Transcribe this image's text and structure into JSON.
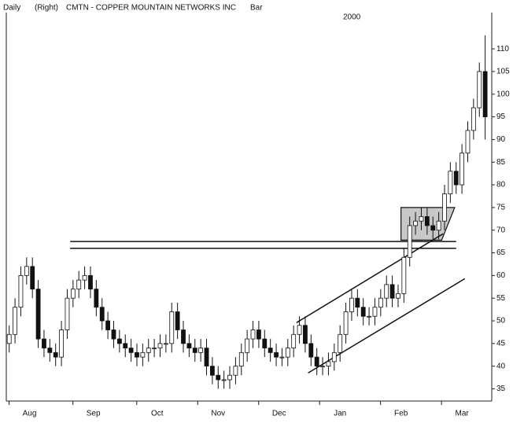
{
  "chart_data": {
    "type": "candlestick",
    "period": "Daily",
    "scale_side": "(Right)",
    "title": "CMTN - COPPER MOUNTAIN NETWORKS INC",
    "style": "Bar",
    "year": "2000",
    "x": [
      0,
      2,
      4,
      6,
      8,
      10,
      12,
      14,
      16,
      18,
      20,
      22,
      24,
      26,
      28,
      30,
      32,
      34,
      36,
      38,
      40,
      42,
      44,
      46,
      48,
      50,
      52,
      54,
      56,
      58,
      60,
      62,
      64,
      66,
      68,
      70,
      72,
      74,
      76,
      78,
      80,
      82,
      84,
      86,
      88,
      90,
      92,
      94,
      96,
      98,
      100,
      102,
      104,
      106,
      108,
      110,
      112,
      114,
      116,
      118,
      120,
      122,
      124,
      126,
      128,
      130,
      132,
      134,
      136,
      138,
      140,
      142,
      144,
      146,
      148,
      150,
      152,
      154,
      156,
      158,
      160,
      162,
      164
    ],
    "open": [
      45,
      47,
      53,
      60,
      62,
      57,
      46,
      44,
      43,
      42,
      48,
      55,
      57,
      59,
      60,
      57,
      53,
      50,
      48,
      46,
      45,
      44,
      43,
      42,
      43,
      44,
      44,
      45,
      45,
      52,
      48,
      45,
      44,
      43,
      44,
      40,
      38,
      37,
      37,
      38,
      40,
      43,
      46,
      48,
      46,
      44,
      43,
      42,
      42,
      44,
      47,
      49,
      45,
      42,
      40,
      40,
      41,
      43,
      47,
      52,
      55,
      53,
      51,
      51,
      53,
      55,
      58,
      55,
      56,
      64,
      71,
      72,
      73,
      71,
      70,
      72,
      78,
      83,
      80,
      87,
      92,
      97,
      105
    ],
    "high": [
      49,
      55,
      62,
      64,
      64,
      59,
      48,
      46,
      45,
      50,
      57,
      59,
      61,
      62,
      62,
      59,
      55,
      52,
      50,
      48,
      47,
      46,
      45,
      45,
      46,
      46,
      47,
      47,
      54,
      54,
      50,
      47,
      46,
      46,
      46,
      42,
      40,
      39,
      40,
      42,
      45,
      48,
      50,
      50,
      48,
      46,
      45,
      44,
      46,
      49,
      51,
      51,
      47,
      44,
      42,
      43,
      45,
      49,
      54,
      57,
      57,
      55,
      53,
      55,
      57,
      60,
      60,
      58,
      66,
      73,
      74,
      75,
      75,
      73,
      74,
      80,
      85,
      85,
      89,
      94,
      99,
      107,
      113
    ],
    "low": [
      43,
      45,
      51,
      58,
      55,
      44,
      42,
      41,
      40,
      40,
      46,
      53,
      55,
      57,
      55,
      51,
      48,
      46,
      44,
      43,
      42,
      41,
      40,
      40,
      41,
      42,
      42,
      43,
      43,
      46,
      43,
      42,
      41,
      41,
      38,
      36,
      35,
      35,
      35,
      36,
      38,
      41,
      44,
      44,
      42,
      41,
      40,
      40,
      40,
      42,
      45,
      43,
      40,
      38,
      38,
      38,
      39,
      41,
      45,
      50,
      51,
      49,
      49,
      49,
      51,
      53,
      53,
      53,
      54,
      62,
      69,
      70,
      69,
      68,
      68,
      70,
      76,
      78,
      78,
      85,
      90,
      95,
      90
    ],
    "close": [
      47,
      53,
      60,
      62,
      57,
      46,
      44,
      43,
      42,
      48,
      55,
      57,
      59,
      60,
      57,
      53,
      50,
      48,
      46,
      45,
      44,
      43,
      42,
      43,
      44,
      44,
      45,
      45,
      52,
      48,
      45,
      44,
      43,
      44,
      40,
      38,
      37,
      37,
      38,
      40,
      43,
      46,
      48,
      46,
      44,
      43,
      42,
      42,
      44,
      47,
      49,
      45,
      42,
      40,
      40,
      41,
      43,
      47,
      52,
      55,
      53,
      51,
      51,
      53,
      55,
      58,
      55,
      56,
      64,
      71,
      72,
      73,
      71,
      70,
      72,
      78,
      83,
      80,
      87,
      92,
      97,
      105,
      95
    ],
    "up_color": "#ffffff",
    "down_color": "#111111",
    "xlim": [
      -1,
      166
    ],
    "ylim": [
      33,
      118
    ],
    "yticks": [
      35,
      40,
      45,
      50,
      55,
      60,
      65,
      70,
      75,
      80,
      85,
      90,
      95,
      100,
      105,
      110
    ],
    "xticks": [
      {
        "value": 7,
        "label": "Aug"
      },
      {
        "value": 29,
        "label": "Sep"
      },
      {
        "value": 51,
        "label": "Oct"
      },
      {
        "value": 72,
        "label": "Nov"
      },
      {
        "value": 93,
        "label": "Dec"
      },
      {
        "value": 114,
        "label": "Jan"
      },
      {
        "value": 135,
        "label": "Feb"
      },
      {
        "value": 156,
        "label": "Mar"
      }
    ],
    "lines": [
      {
        "x": [
          21,
          154
        ],
        "y": [
          67.5,
          67.5
        ]
      },
      {
        "x": [
          21,
          154
        ],
        "y": [
          66,
          66
        ]
      },
      {
        "x": [
          99,
          149.5
        ],
        "y": [
          49.6,
          69.2
        ]
      },
      {
        "x": [
          103,
          157
        ],
        "y": [
          38.5,
          59.3
        ]
      }
    ],
    "flag": {
      "x": [
        135,
        153.5,
        149,
        135
      ],
      "y": [
        75,
        75,
        67.8,
        67.8
      ],
      "color": "#c8c8c8"
    }
  }
}
